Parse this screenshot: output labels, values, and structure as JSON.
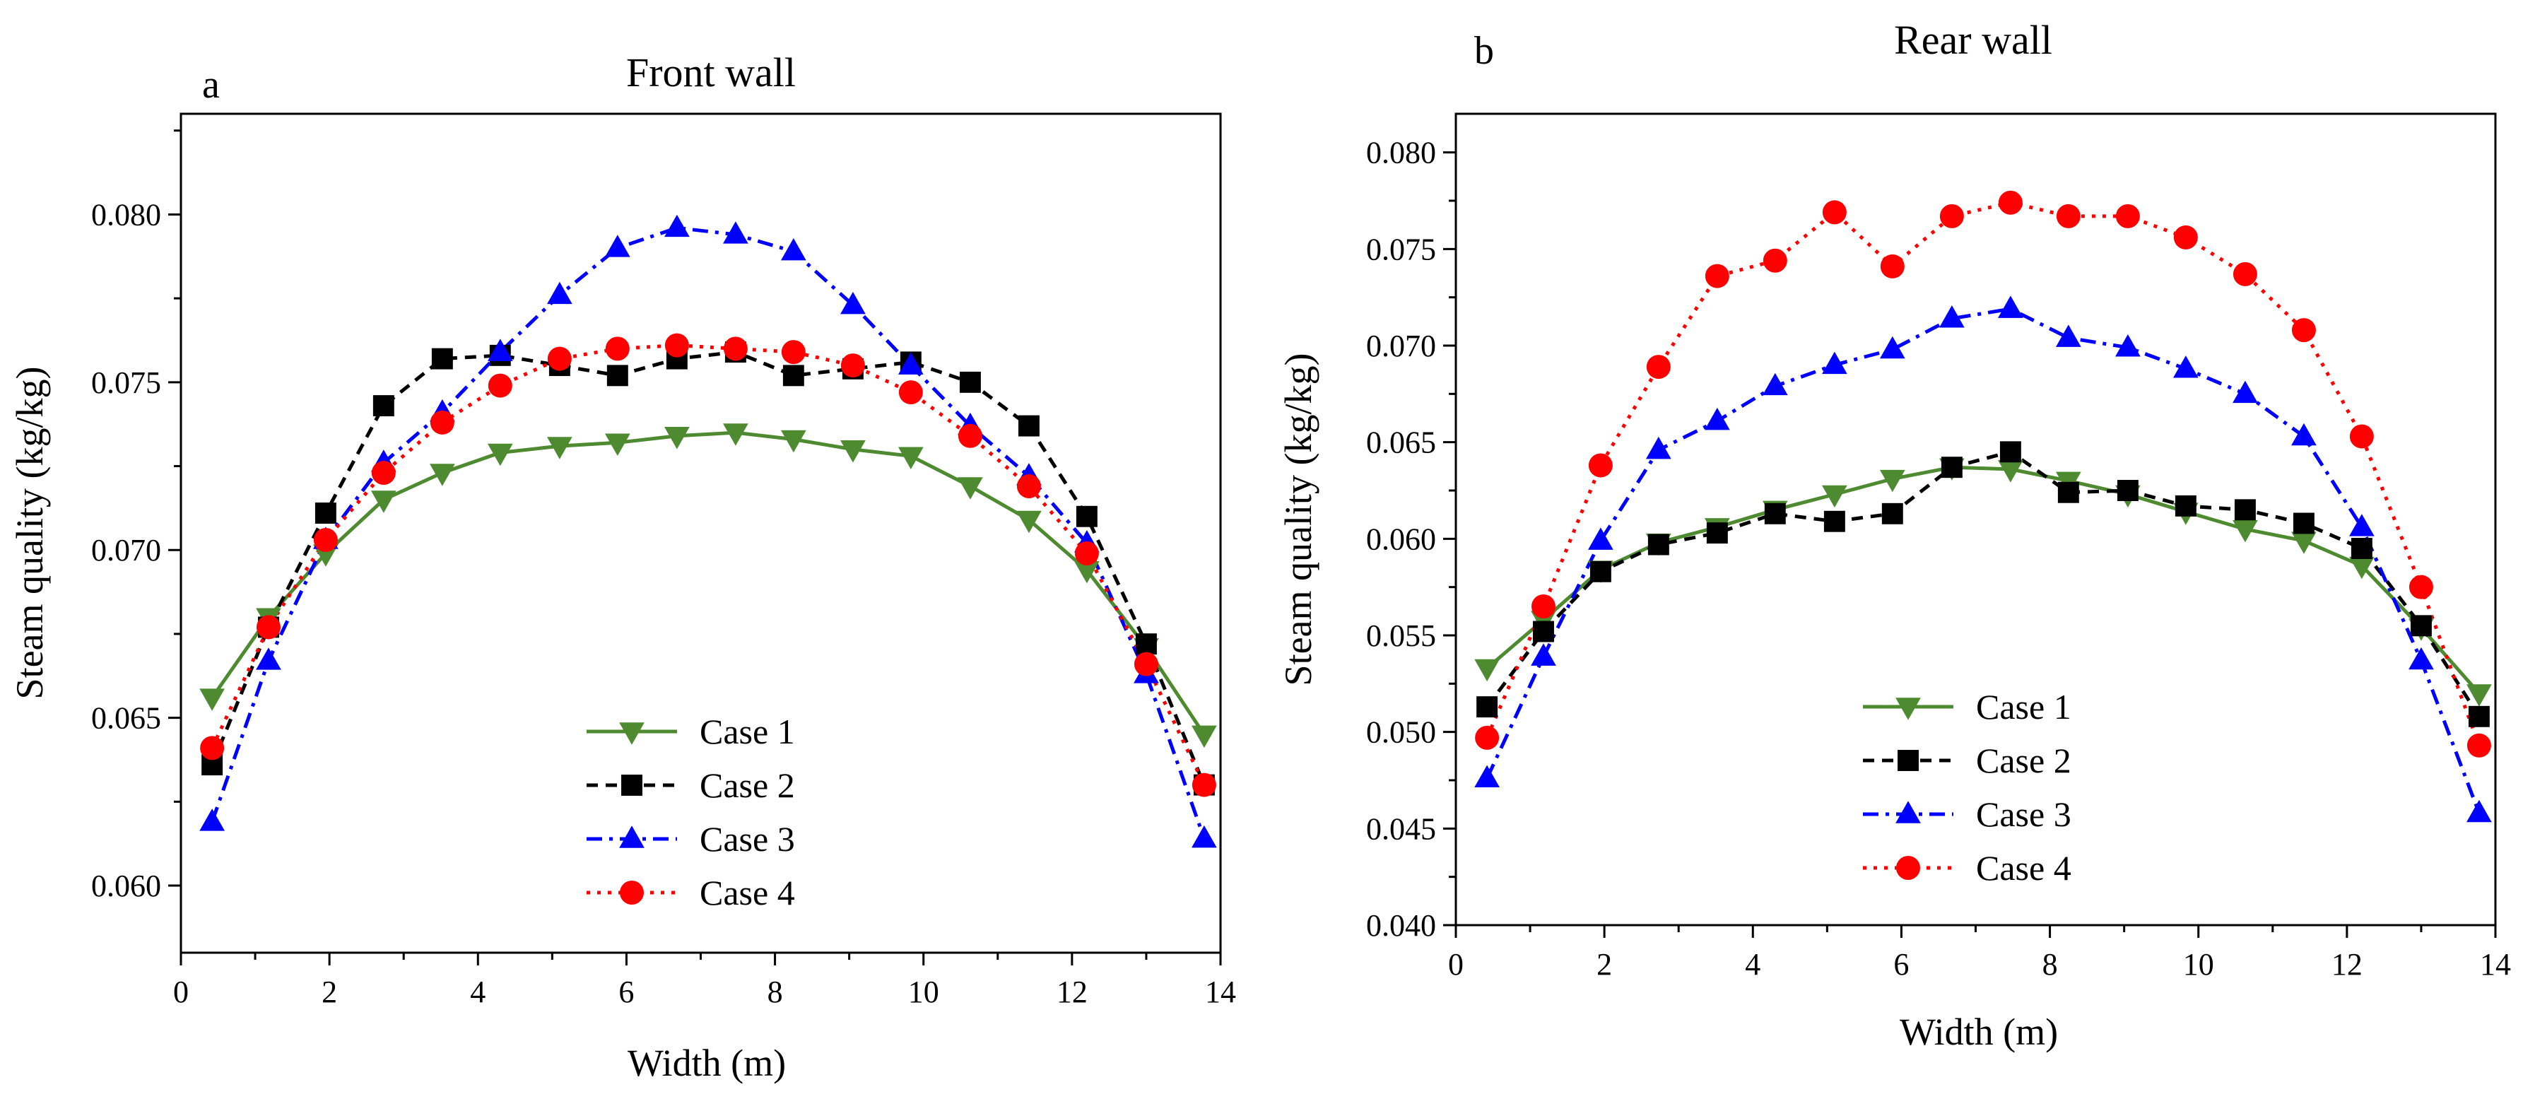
{
  "chart_data": [
    {
      "panel": "a",
      "type": "line",
      "title": "Front wall",
      "xlabel": "Width (m)",
      "ylabel": "Steam quality (kg/kg)",
      "xlim": [
        0,
        14
      ],
      "ylim": [
        0.058,
        0.083
      ],
      "xticks": [
        0,
        2,
        4,
        6,
        8,
        10,
        12,
        14
      ],
      "xtick_labels": [
        "0",
        "2",
        "4",
        "6",
        "8",
        "10",
        "12",
        "14"
      ],
      "yticks": [
        0.06,
        0.065,
        0.07,
        0.075,
        0.08
      ],
      "ytick_labels": [
        "0.060",
        "0.065",
        "0.070",
        "0.075",
        "0.080"
      ],
      "grid": false,
      "legend_position": "bottom-center",
      "x": [
        0.42,
        1.18,
        1.95,
        2.73,
        3.52,
        4.3,
        5.1,
        5.88,
        6.68,
        7.47,
        8.25,
        9.05,
        9.83,
        10.63,
        11.42,
        12.2,
        13.0,
        13.78
      ],
      "series": [
        {
          "name": "Case 1",
          "color": "#4e8a2f",
          "dash": "solid",
          "marker": "triangle-down",
          "values": [
            0.0656,
            0.068,
            0.0699,
            0.0715,
            0.0723,
            0.0729,
            0.0731,
            0.0732,
            0.0734,
            0.0735,
            0.0733,
            0.073,
            0.0728,
            0.0719,
            0.0709,
            0.0694,
            0.0671,
            0.0645
          ]
        },
        {
          "name": "Case 2",
          "color": "#000000",
          "dash": "dash",
          "marker": "square",
          "values": [
            0.0636,
            0.0677,
            0.0711,
            0.0743,
            0.0757,
            0.0758,
            0.0755,
            0.0752,
            0.0757,
            0.0759,
            0.0752,
            0.0754,
            0.0756,
            0.075,
            0.0737,
            0.071,
            0.0672,
            0.063
          ]
        },
        {
          "name": "Case 3",
          "color": "#0000ff",
          "dash": "dashdot",
          "marker": "triangle-up",
          "values": [
            0.0619,
            0.0667,
            0.0703,
            0.0726,
            0.0741,
            0.0759,
            0.0776,
            0.079,
            0.0796,
            0.0794,
            0.0789,
            0.0773,
            0.0755,
            0.0737,
            0.0722,
            0.0702,
            0.0663,
            0.0614
          ]
        },
        {
          "name": "Case 4",
          "color": "#ff0000",
          "dash": "dot",
          "marker": "circle",
          "values": [
            0.0641,
            0.0677,
            0.0703,
            0.0723,
            0.0738,
            0.0749,
            0.0757,
            0.076,
            0.0761,
            0.076,
            0.0759,
            0.0755,
            0.0747,
            0.0734,
            0.0719,
            0.0699,
            0.0666,
            0.063
          ]
        }
      ]
    },
    {
      "panel": "b",
      "type": "line",
      "title": "Rear wall",
      "xlabel": "Width (m)",
      "ylabel": "Steam quality (kg/kg)",
      "xlim": [
        0,
        14
      ],
      "ylim": [
        0.04,
        0.082
      ],
      "xticks": [
        0,
        2,
        4,
        6,
        8,
        10,
        12,
        14
      ],
      "xtick_labels": [
        "0",
        "2",
        "4",
        "6",
        "8",
        "10",
        "12",
        "14"
      ],
      "yticks": [
        0.04,
        0.045,
        0.05,
        0.055,
        0.06,
        0.065,
        0.07,
        0.075,
        0.08
      ],
      "ytick_labels": [
        "0.040",
        "0.045",
        "0.050",
        "0.055",
        "0.060",
        "0.065",
        "0.070",
        "0.075",
        "0.080"
      ],
      "grid": false,
      "legend_position": "bottom-center",
      "x": [
        0.42,
        1.18,
        1.95,
        2.73,
        3.52,
        4.3,
        5.1,
        5.88,
        6.68,
        7.47,
        8.25,
        9.05,
        9.83,
        10.63,
        11.42,
        12.2,
        13.0,
        13.78
      ],
      "series": [
        {
          "name": "Case 1",
          "color": "#4e8a2f",
          "dash": "solid",
          "marker": "triangle-down",
          "values": [
            0.0533,
            0.0558,
            0.0584,
            0.0598,
            0.0606,
            0.0615,
            0.0623,
            0.0631,
            0.0637,
            0.0636,
            0.063,
            0.0623,
            0.0614,
            0.0605,
            0.0599,
            0.0586,
            0.0554,
            0.052
          ]
        },
        {
          "name": "Case 2",
          "color": "#000000",
          "dash": "dash",
          "marker": "square",
          "values": [
            0.0513,
            0.0552,
            0.0583,
            0.0597,
            0.0603,
            0.0613,
            0.0609,
            0.0613,
            0.0637,
            0.0645,
            0.0624,
            0.0625,
            0.0617,
            0.0615,
            0.0608,
            0.0595,
            0.0555,
            0.0508
          ]
        },
        {
          "name": "Case 3",
          "color": "#0000ff",
          "dash": "dashdot",
          "marker": "triangle-up",
          "values": [
            0.0476,
            0.0539,
            0.0599,
            0.0646,
            0.0661,
            0.0679,
            0.069,
            0.0698,
            0.0714,
            0.0719,
            0.0704,
            0.0699,
            0.0688,
            0.0675,
            0.0653,
            0.0606,
            0.0537,
            0.0458
          ]
        },
        {
          "name": "Case 4",
          "color": "#ff0000",
          "dash": "dot",
          "marker": "circle",
          "values": [
            0.0497,
            0.0565,
            0.0638,
            0.0689,
            0.0736,
            0.0744,
            0.0769,
            0.0741,
            0.0767,
            0.0774,
            0.0767,
            0.0767,
            0.0756,
            0.0737,
            0.0708,
            0.0653,
            0.0575,
            0.0493
          ]
        }
      ]
    }
  ]
}
